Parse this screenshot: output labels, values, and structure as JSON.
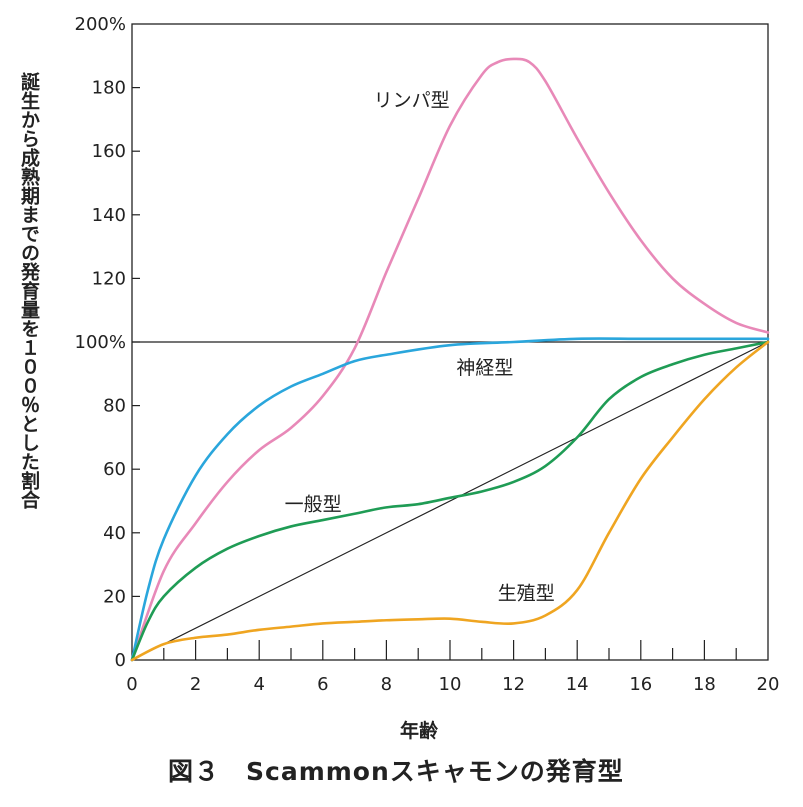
{
  "chart_data": {
    "type": "line",
    "caption": "図３　Scammonスキャモンの発育型",
    "xlabel": "年齢",
    "ylabel": "誕生から成熟期までの発育量を１００％とした割合",
    "xlim": [
      0,
      20
    ],
    "ylim": [
      0,
      200
    ],
    "x_ticks": [
      0,
      2,
      4,
      6,
      8,
      10,
      12,
      14,
      16,
      18,
      20
    ],
    "x_tick_labels": [
      "0",
      "2",
      "4",
      "6",
      "8",
      "10",
      "12",
      "14",
      "16",
      "18",
      "20"
    ],
    "y_ticks": [
      0,
      20,
      40,
      60,
      80,
      100,
      120,
      140,
      160,
      180,
      200
    ],
    "y_tick_labels": [
      "0",
      "20",
      "40",
      "60",
      "80",
      "100%",
      "120",
      "140",
      "160",
      "180",
      "200%"
    ],
    "reference_line_y": 100,
    "diagonal_from_to": [
      [
        0,
        0
      ],
      [
        20,
        100
      ]
    ],
    "grid": false,
    "series": [
      {
        "name": "リンパ型",
        "color": "#e889b8",
        "label_at": [
          7.6,
          174
        ],
        "x": [
          0,
          1,
          2,
          3,
          4,
          5,
          6,
          7,
          8,
          9,
          10,
          11,
          11.5,
          12,
          12.5,
          13,
          14,
          15,
          16,
          17,
          18,
          19,
          20
        ],
        "y": [
          0,
          28,
          43,
          56,
          66,
          73,
          83,
          98,
          122,
          145,
          168,
          184,
          188,
          189,
          188,
          182,
          164,
          147,
          132,
          120,
          112,
          106,
          103
        ]
      },
      {
        "name": "神経型",
        "color": "#2aa6dc",
        "label_at": [
          10.2,
          90
        ],
        "x": [
          0,
          0.5,
          1,
          2,
          3,
          4,
          5,
          6,
          7,
          8,
          10,
          12,
          14,
          16,
          18,
          20
        ],
        "y": [
          0,
          22,
          38,
          58,
          71,
          80,
          86,
          90,
          94,
          96,
          99,
          100,
          101,
          101,
          101,
          101
        ]
      },
      {
        "name": "一般型",
        "color": "#1f9c55",
        "label_at": [
          4.8,
          47
        ],
        "x": [
          0,
          0.5,
          1,
          2,
          3,
          4,
          5,
          6,
          7,
          8,
          9,
          10,
          11,
          12,
          13,
          14,
          15,
          16,
          17,
          18,
          19,
          20
        ],
        "y": [
          0,
          12,
          20,
          29,
          35,
          39,
          42,
          44,
          46,
          48,
          49,
          51,
          53,
          56,
          61,
          70,
          82,
          89,
          93,
          96,
          98,
          100
        ]
      },
      {
        "name": "生殖型",
        "color": "#efa521",
        "label_at": [
          11.5,
          19
        ],
        "x": [
          0,
          1,
          2,
          3,
          4,
          5,
          6,
          7,
          8,
          9,
          10,
          11,
          12,
          13,
          14,
          15,
          16,
          17,
          18,
          19,
          20
        ],
        "y": [
          0,
          5,
          7,
          8,
          9.5,
          10.5,
          11.5,
          12,
          12.5,
          12.8,
          13,
          12,
          11.5,
          14,
          22,
          40,
          57,
          70,
          82,
          92,
          100
        ]
      }
    ]
  }
}
